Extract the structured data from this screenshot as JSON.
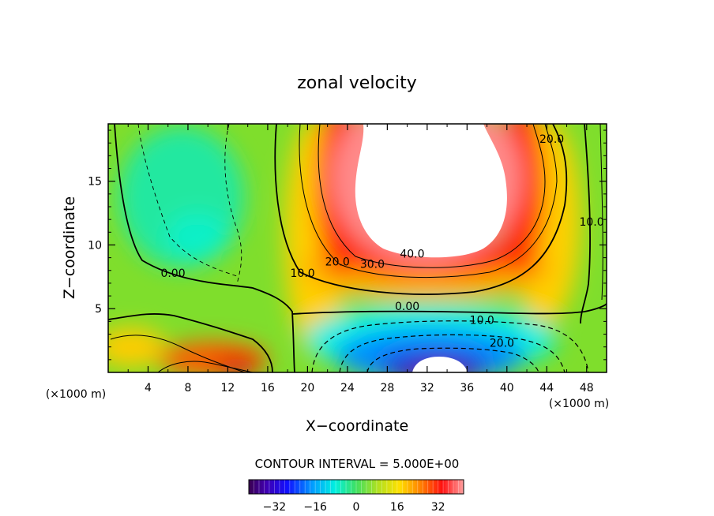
{
  "chart_data": {
    "type": "heatmap",
    "title": "zonal velocity",
    "xlabel": "X−coordinate",
    "ylabel": "Z−coordinate",
    "x_unit_left": "(×1000 m)",
    "x_unit_right": "(×1000 m)",
    "xlim": [
      0,
      50
    ],
    "ylim": [
      0,
      19.5
    ],
    "x_ticks": [
      4,
      8,
      12,
      16,
      20,
      24,
      28,
      32,
      36,
      40,
      44,
      48
    ],
    "y_ticks": [
      5,
      10,
      15
    ],
    "contour_interval_text": "CONTOUR INTERVAL = 5.000E+00",
    "contour_labels": [
      {
        "text": "40.0",
        "x": 30.5,
        "y": 9.0
      },
      {
        "text": "30.0",
        "x": 26.5,
        "y": 8.2
      },
      {
        "text": "20.0",
        "x": 23.0,
        "y": 8.4
      },
      {
        "text": "10.0",
        "x": 19.5,
        "y": 7.5
      },
      {
        "text": "0.00",
        "x": 6.5,
        "y": 7.5
      },
      {
        "text": "0.00",
        "x": 30.0,
        "y": 4.9
      },
      {
        "text": "10.0",
        "x": 37.5,
        "y": 3.8
      },
      {
        "text": "20.0",
        "x": 39.5,
        "y": 2.0
      },
      {
        "text": "20.0",
        "x": 44.5,
        "y": 18.0
      },
      {
        "text": "10.0",
        "x": 48.5,
        "y": 11.5
      }
    ],
    "colorbar": {
      "min": -42,
      "max": 42,
      "ticks": [
        -32,
        -16,
        0,
        16,
        32
      ],
      "tick_labels": [
        "−32",
        "−16",
        "0",
        "16",
        "32"
      ]
    },
    "grid": false
  },
  "colors": {
    "masked_region": "#ffffff",
    "axis": "#000000"
  }
}
